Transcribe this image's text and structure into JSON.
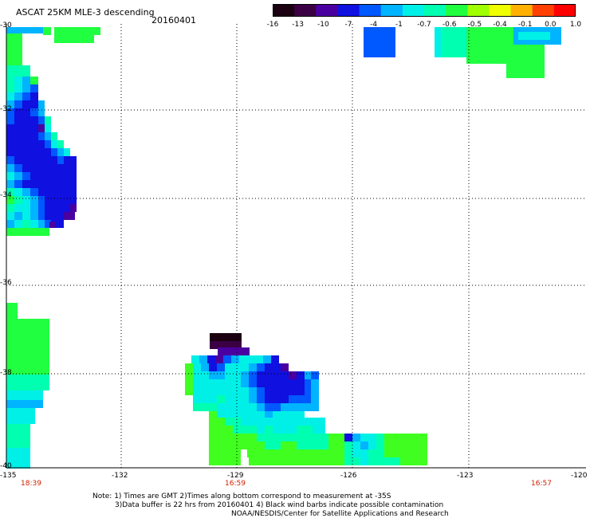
{
  "title": "ASCAT 25KM MLE-3 descending",
  "date": "20160401",
  "colorbar": {
    "labels": [
      "-16",
      "-13",
      "-10",
      "-7",
      "-4",
      "-1",
      "-0.7",
      "-0.6",
      "-0.5",
      "-0.4",
      "-0.1",
      "0.0",
      "1.0"
    ],
    "colors": [
      "#1a0010",
      "#3b0044",
      "#4a00a0",
      "#1010e0",
      "#0058ff",
      "#00b4ff",
      "#00f0e8",
      "#00ffb0",
      "#20ff40",
      "#a0ff00",
      "#f0ff00",
      "#ffb000",
      "#ff4000",
      "#ff0000"
    ]
  },
  "axes": {
    "lat_labels": [
      "-30",
      "-32",
      "-34",
      "-36",
      "-38",
      "-40"
    ],
    "lon_labels": [
      "-135",
      "-132",
      "-129",
      "-126",
      "-123",
      "-120"
    ]
  },
  "times": [
    "18:39",
    "16:59",
    "16:57"
  ],
  "notes": [
    "Note: 1) Times are GMT 2)Times along bottom correspond to measurement at -35S",
    "3)Data buffer is 22 hrs from 20160401 4) Black wind barbs indicate possible contamination",
    "NOAA/NESDIS/Center for Satellite Applications and Research"
  ]
}
